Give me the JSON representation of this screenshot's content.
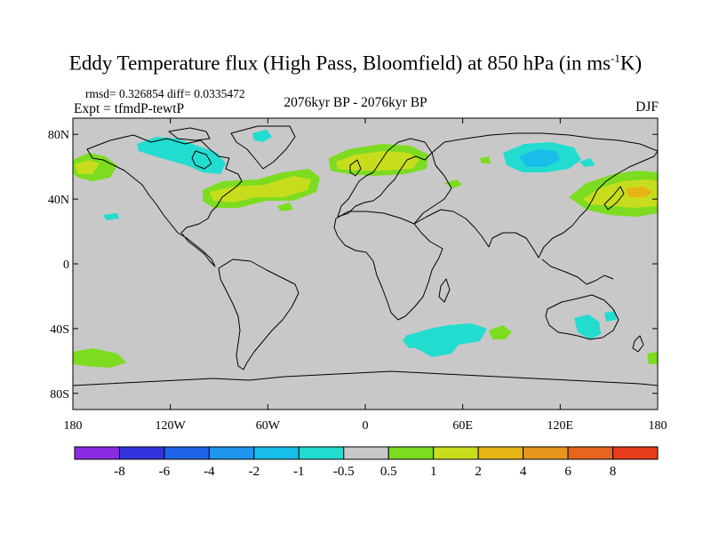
{
  "title": {
    "main": "Eddy Temperature flux (High Pass, Bloomfield) at 850 hPa (in ms",
    "sup": "-1",
    "tail": "K)"
  },
  "stats": "rmsd= 0.326854  diff= 0.0335472",
  "experiment": "Expt = tfmdP-tewtP",
  "period": "2076kyr BP - 2076kyr BP",
  "season": "DJF",
  "axes": {
    "lat_ticks": [
      {
        "value": 80,
        "label": "80N"
      },
      {
        "value": 40,
        "label": "40N"
      },
      {
        "value": 0,
        "label": "0"
      },
      {
        "value": -40,
        "label": "40S"
      },
      {
        "value": -80,
        "label": "80S"
      }
    ],
    "lon_ticks": [
      {
        "value": -180,
        "label": "180"
      },
      {
        "value": -120,
        "label": "120W"
      },
      {
        "value": -60,
        "label": "60W"
      },
      {
        "value": 0,
        "label": "0"
      },
      {
        "value": 60,
        "label": "60E"
      },
      {
        "value": 120,
        "label": "120E"
      },
      {
        "value": 180,
        "label": "180"
      }
    ],
    "lat_range": [
      -90,
      90
    ],
    "lon_range": [
      -180,
      180
    ]
  },
  "colorbar": {
    "colors": [
      "#8a2be2",
      "#3333dd",
      "#1e64e8",
      "#1e96ee",
      "#19bee8",
      "#22dcd0",
      "#c8c8c8",
      "#7ddc1f",
      "#c8dc1e",
      "#e6b414",
      "#e6961e",
      "#e6641e",
      "#e63c1e"
    ],
    "labels": [
      "-8",
      "-6",
      "-4",
      "-2",
      "-1",
      "-0.5",
      "0.5",
      "1",
      "2",
      "4",
      "6",
      "8"
    ]
  },
  "colors": {
    "background": "#c8c8c8",
    "coast": "#000000"
  }
}
